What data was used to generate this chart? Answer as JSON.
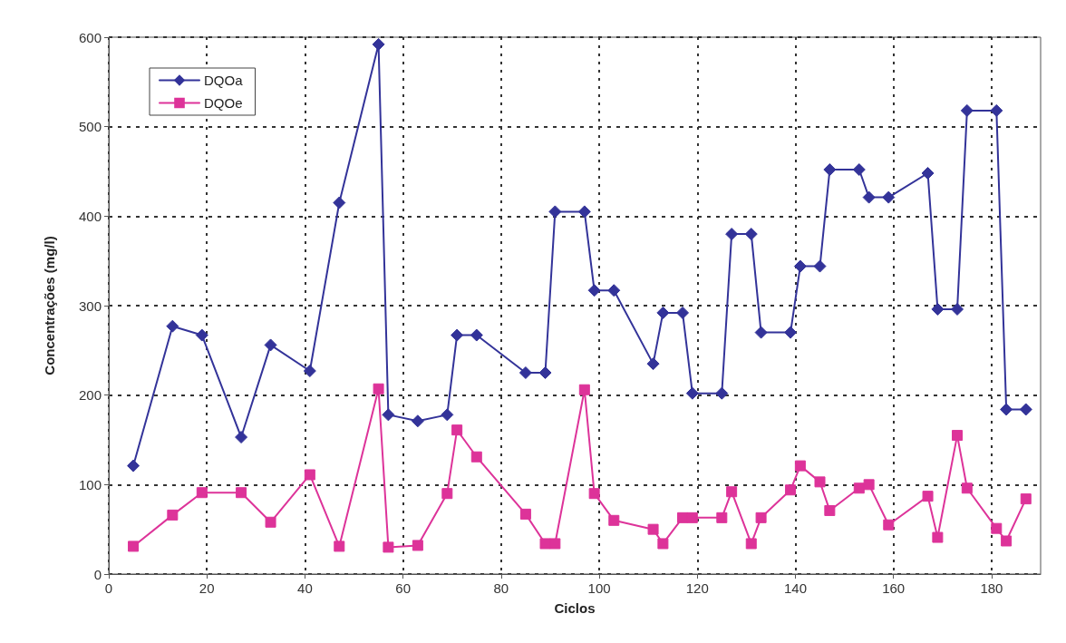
{
  "chart_data": {
    "type": "line",
    "xlabel": "Ciclos",
    "ylabel": "Concentrações (mg/l)",
    "xlim": [
      0,
      190
    ],
    "xticks": [
      0,
      20,
      40,
      60,
      80,
      100,
      120,
      140,
      160,
      180
    ],
    "ylim": [
      0,
      600
    ],
    "yticks": [
      0,
      100,
      200,
      300,
      400,
      500,
      600
    ],
    "grid": true,
    "legend": "top left",
    "line_style": "solid",
    "series": [
      {
        "name": "DQOa",
        "color": "#333399",
        "marker": "diamond",
        "x": [
          5,
          13,
          19,
          27,
          33,
          41,
          47,
          55,
          57,
          63,
          69,
          71,
          75,
          85,
          89,
          91,
          97,
          99,
          103,
          111,
          113,
          117,
          119,
          125,
          127,
          131,
          133,
          139,
          141,
          145,
          147,
          153,
          155,
          159,
          167,
          169,
          173,
          175,
          181,
          183,
          187
        ],
        "values": [
          121,
          277,
          267,
          153,
          256,
          227,
          415,
          592,
          178,
          171,
          178,
          267,
          267,
          225,
          225,
          405,
          405,
          317,
          317,
          235,
          292,
          292,
          202,
          202,
          380,
          380,
          270,
          270,
          344,
          344,
          452,
          452,
          421,
          421,
          448,
          296,
          296,
          518,
          518,
          184,
          184
        ]
      },
      {
        "name": "DQOe",
        "color": "#dd3399",
        "marker": "square",
        "x": [
          5,
          13,
          19,
          27,
          33,
          41,
          47,
          55,
          57,
          63,
          69,
          71,
          75,
          85,
          89,
          91,
          97,
          99,
          103,
          111,
          113,
          117,
          119,
          125,
          127,
          131,
          133,
          139,
          141,
          145,
          147,
          153,
          155,
          159,
          167,
          169,
          173,
          175,
          181,
          183,
          187
        ],
        "values": [
          31,
          66,
          91,
          91,
          58,
          111,
          31,
          207,
          30,
          32,
          90,
          161,
          131,
          67,
          34,
          34,
          206,
          90,
          60,
          50,
          34,
          63,
          63,
          63,
          92,
          34,
          63,
          94,
          121,
          103,
          71,
          96,
          100,
          55,
          87,
          41,
          155,
          96,
          51,
          37,
          84
        ]
      }
    ]
  }
}
